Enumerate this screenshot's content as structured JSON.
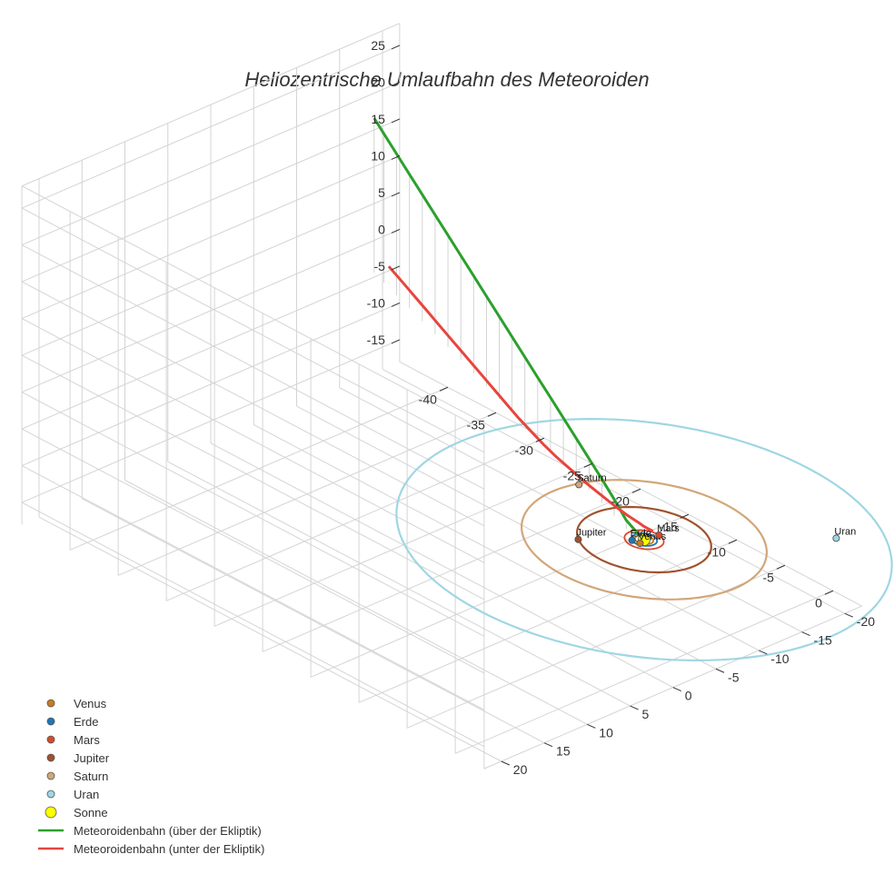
{
  "chart_data": {
    "type": "line3d",
    "title": "Heliozentrische Umlaufbahn des Meteoroiden",
    "xlabel": "",
    "ylabel": "",
    "zlabel": "",
    "axes": {
      "x": {
        "range": [
          -45,
          3
        ],
        "ticks": [
          -40,
          -35,
          -30,
          -25,
          -20,
          -15,
          -10,
          -5,
          0
        ]
      },
      "y": {
        "range": [
          -22,
          22
        ],
        "ticks": [
          -20,
          -15,
          -10,
          -5,
          0,
          5,
          10,
          15,
          20
        ]
      },
      "z": {
        "range": [
          -18,
          28
        ],
        "ticks": [
          -15,
          -10,
          -5,
          0,
          5,
          10,
          15,
          20,
          25
        ]
      }
    },
    "orbits": [
      {
        "name": "Venus",
        "radius": 0.72,
        "color": "#c77c1e"
      },
      {
        "name": "Erde",
        "radius": 1.0,
        "color": "#1f77b4"
      },
      {
        "name": "Mars",
        "radius": 1.52,
        "color": "#d84b2a"
      },
      {
        "name": "Jupiter",
        "radius": 5.2,
        "color": "#a0522d"
      },
      {
        "name": "Saturn",
        "radius": 9.5,
        "color": "#d2a679"
      },
      {
        "name": "Uran",
        "radius": 19.2,
        "color": "#9fd6e3"
      }
    ],
    "planets": [
      {
        "name": "Venus",
        "x": 0.2,
        "y": 0.7,
        "z": 0,
        "color": "#c77c1e",
        "label": "Venus"
      },
      {
        "name": "Erde",
        "x": -0.5,
        "y": 0.85,
        "z": 0,
        "color": "#1f77b4",
        "label": "Erde"
      },
      {
        "name": "Mars",
        "x": 0.2,
        "y": -1.5,
        "z": 0,
        "color": "#d84b2a",
        "label": "Mars"
      },
      {
        "name": "Jupiter",
        "x": -3.1,
        "y": 4.2,
        "z": 0,
        "color": "#a0522d",
        "label": "Jupiter"
      },
      {
        "name": "Saturn",
        "x": -9.0,
        "y": -2.5,
        "z": 0,
        "color": "#d2a679",
        "label": "Saturn"
      },
      {
        "name": "Uran",
        "x": 8.8,
        "y": -12.5,
        "z": 0,
        "color": "#9fd6e3",
        "label": "Uran"
      }
    ],
    "sun": {
      "name": "Sonne",
      "x": 0,
      "y": 0,
      "z": 0,
      "color": "#ffff00"
    },
    "series": [
      {
        "name": "Meteoroidenbahn (über der Ekliptik)",
        "color": "#2ca02c",
        "x": [
          0.5,
          -2,
          -4,
          -6,
          -8,
          -10,
          -12,
          -14,
          -16,
          -18,
          -20,
          -22,
          -24,
          -26,
          -28,
          -30,
          -32,
          -34,
          -36,
          -38,
          -40,
          -41.5
        ],
        "y": [
          0.3,
          -0.15,
          -1.0,
          -1.8,
          -2.55,
          -3.3,
          -4.05,
          -4.8,
          -5.55,
          -6.3,
          -7.05,
          -7.8,
          -8.55,
          -9.3,
          -10.05,
          -10.8,
          -11.55,
          -12.3,
          -13.05,
          -13.8,
          -14.55,
          -15.1
        ],
        "z": [
          0,
          1.2,
          2.2,
          3.2,
          4.2,
          5.2,
          6.2,
          7.2,
          8.2,
          9.2,
          10.2,
          11.2,
          12.2,
          13.2,
          14.2,
          15.2,
          16.2,
          17.2,
          18.2,
          19.2,
          20.2,
          21.0
        ]
      },
      {
        "name": "Meteoroidenbahn (unter der Ekliptik)",
        "color": "#e8453c",
        "x": [
          -0.5,
          -1.0,
          -1.5,
          -2.0,
          -3.5,
          -5,
          -7,
          -9,
          -11,
          -13,
          -15,
          -17,
          -19,
          -21,
          -23,
          -25,
          -27,
          -29,
          -31,
          -33,
          -35,
          -37,
          -39,
          -41.5
        ],
        "y": [
          -1.6,
          -1.6,
          -1.6,
          -1.7,
          -1.9,
          -2.2,
          -2.7,
          -3.2,
          -3.8,
          -4.4,
          -5.1,
          -5.9,
          -6.7,
          -7.6,
          -8.5,
          -9.4,
          -10.3,
          -11.2,
          -12.1,
          -13.0,
          -13.9,
          -14.8,
          -15.7,
          -16.8
        ],
        "z": [
          0,
          0,
          0,
          0,
          0,
          0,
          0,
          0,
          0,
          0,
          0,
          0,
          0,
          0,
          0,
          0,
          0,
          0,
          0,
          0,
          0,
          0,
          0,
          0
        ]
      }
    ],
    "legend_position": "bottom-left",
    "legend": [
      {
        "label": "Venus",
        "color": "#c77c1e",
        "kind": "marker"
      },
      {
        "label": "Erde",
        "color": "#1f77b4",
        "kind": "marker"
      },
      {
        "label": "Mars",
        "color": "#d84b2a",
        "kind": "marker"
      },
      {
        "label": "Jupiter",
        "color": "#a0522d",
        "kind": "marker"
      },
      {
        "label": "Saturn",
        "color": "#d2a679",
        "kind": "marker"
      },
      {
        "label": "Uran",
        "color": "#9fd6e3",
        "kind": "marker"
      },
      {
        "label": "Sonne",
        "color": "#ffff00",
        "kind": "bigmarker"
      },
      {
        "label": "Meteoroidenbahn (über der Ekliptik)",
        "color": "#2ca02c",
        "kind": "line"
      },
      {
        "label": "Meteoroidenbahn (unter der Ekliptik)",
        "color": "#e8453c",
        "kind": "line"
      }
    ]
  }
}
